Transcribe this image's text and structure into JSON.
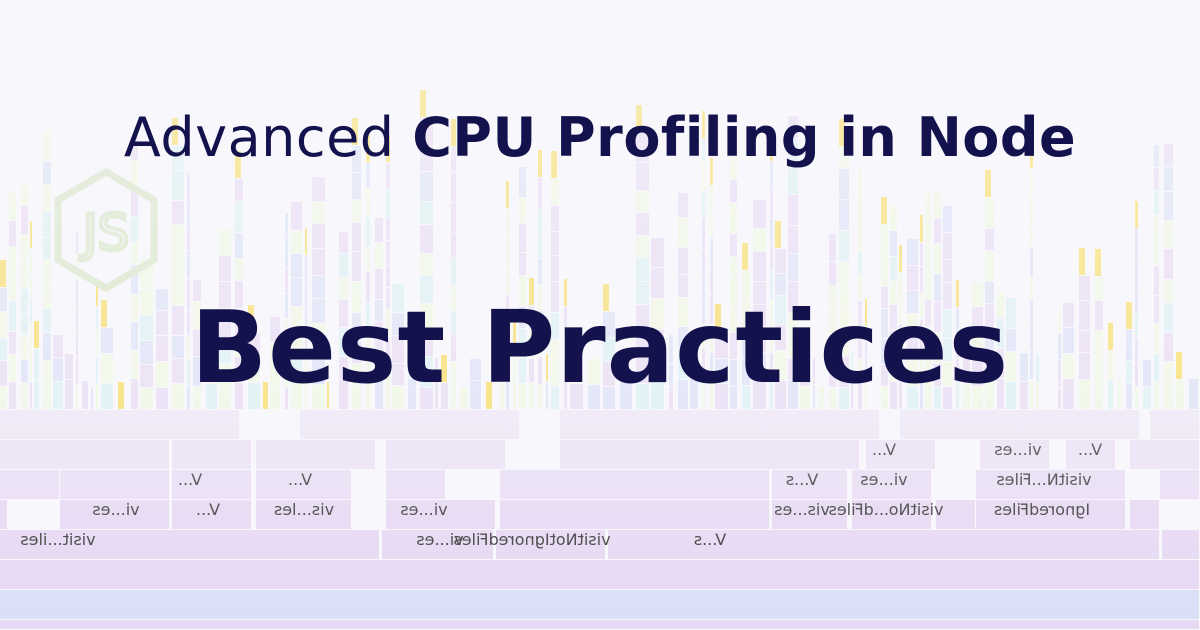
{
  "title": {
    "prefix": "Advanced",
    "main": "CPU Profiling in Node",
    "subtitle": "Best Practices"
  },
  "logo": {
    "icon": "nodejs-icon",
    "text": "JS"
  },
  "flamegraph_labels": [
    "V...",
    "vi...es",
    "V...",
    "vi...es",
    "visitN...Files",
    "V...",
    "V...",
    "V...s",
    "vi...es",
    "V...",
    "vis...les",
    "vi...es",
    "vis...es",
    "visitNo...dFiles",
    "IgnoredFiles",
    "visit...iles",
    "vi...es",
    "visitNotIgnoredFiles",
    "V...s"
  ],
  "colors": {
    "title": "#14124d",
    "flame_purple": "#e6d7f3",
    "flame_green": "#eef7df",
    "flame_yellow": "#f7d94b",
    "flame_blue": "#d7def5",
    "flame_cyan": "#d6eff2"
  }
}
